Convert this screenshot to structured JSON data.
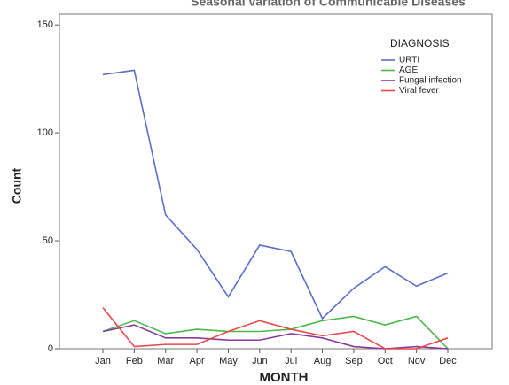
{
  "chart_data": {
    "type": "line",
    "title": "Seasonal variation of Communicable Diseases",
    "x_label": "MONTH",
    "y_label": "Count",
    "legend_title": "DIAGNOSIS",
    "legend": "upper right",
    "categories": [
      "Jan",
      "Feb",
      "Mar",
      "Apr",
      "May",
      "Jun",
      "Jul",
      "Aug",
      "Sep",
      "Oct",
      "Nov",
      "Dec"
    ],
    "series": [
      {
        "name": "URTI",
        "color": "#5a6fc8",
        "values": [
          127,
          129,
          62,
          46,
          24,
          48,
          45,
          14,
          28,
          38,
          29,
          35
        ]
      },
      {
        "name": "AGE",
        "color": "#4cb84c",
        "values": [
          8,
          13,
          7,
          9,
          8,
          8,
          9,
          13,
          15,
          11,
          15,
          0
        ]
      },
      {
        "name": "Fungal infection",
        "color": "#8a3a9a",
        "values": [
          8,
          11,
          5,
          5,
          4,
          4,
          7,
          5,
          1,
          0,
          1,
          0
        ]
      },
      {
        "name": "Viral fever",
        "color": "#e84a4a",
        "values": [
          19,
          1,
          2,
          2,
          8,
          13,
          9,
          6,
          8,
          0,
          0,
          5
        ]
      }
    ],
    "ylim": [
      0,
      155
    ],
    "yticks": [
      0,
      50,
      100,
      150
    ]
  }
}
